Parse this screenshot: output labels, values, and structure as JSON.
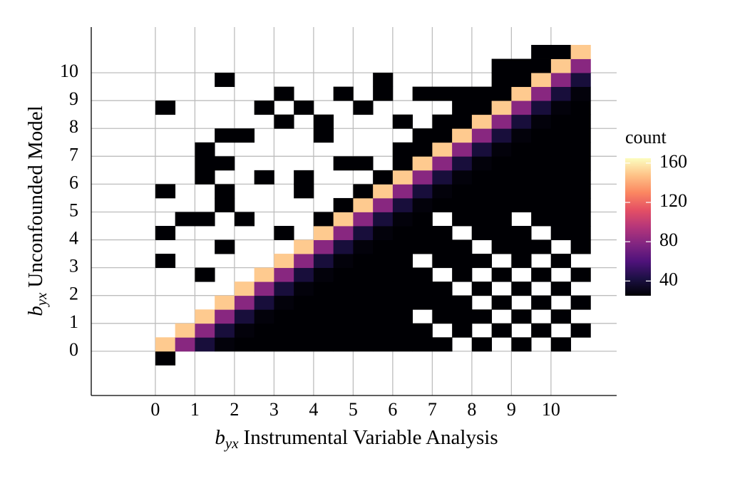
{
  "chart_data": {
    "type": "heatmap",
    "x_label": {
      "symbol": "b",
      "subscript": "yx",
      "text": "Instrumental Variable Analysis"
    },
    "y_label": {
      "symbol": "b",
      "subscript": "yx",
      "text": "Unconfounded Model"
    },
    "xlim": [
      -1.62,
      11.66
    ],
    "ylim": [
      -1.59,
      11.64
    ],
    "xticks": [
      0,
      1,
      2,
      3,
      4,
      5,
      6,
      7,
      8,
      9,
      10
    ],
    "yticks": [
      0,
      1,
      2,
      3,
      4,
      5,
      6,
      7,
      8,
      9,
      10
    ],
    "grid": true,
    "xbins": [
      0,
      0.5,
      1,
      1.5,
      2,
      2.5,
      3,
      3.5,
      4,
      4.5,
      5,
      5.5,
      6,
      6.5,
      7,
      7.5,
      8,
      8.5,
      9,
      9.5,
      10,
      10.5,
      11
    ],
    "ybins": [
      -0.5,
      0,
      0.5,
      1,
      1.5,
      2,
      2.5,
      3,
      3.5,
      4,
      4.5,
      5,
      5.5,
      6,
      6.5,
      7,
      7.5,
      8,
      8.5,
      9,
      9.5,
      10,
      10.5,
      11
    ],
    "z": [
      [
        1,
        null,
        null,
        null,
        null,
        null,
        null,
        null,
        null,
        null,
        null,
        null,
        null,
        null,
        null,
        null,
        null,
        null,
        null,
        null,
        null,
        null
      ],
      [
        150,
        80,
        40,
        27,
        20,
        16,
        13,
        11,
        10,
        9,
        8,
        7,
        7,
        6,
        6,
        null,
        5,
        null,
        4,
        null,
        4,
        null
      ],
      [
        null,
        150,
        80,
        40,
        27,
        20,
        16,
        13,
        11,
        10,
        9,
        8,
        7,
        7,
        null,
        6,
        null,
        5,
        null,
        4,
        null,
        4
      ],
      [
        null,
        null,
        150,
        80,
        40,
        27,
        20,
        16,
        13,
        11,
        10,
        9,
        8,
        null,
        7,
        6,
        6,
        null,
        5,
        null,
        4,
        null
      ],
      [
        null,
        null,
        null,
        150,
        80,
        40,
        27,
        20,
        16,
        13,
        11,
        10,
        9,
        8,
        7,
        7,
        null,
        6,
        null,
        5,
        null,
        4
      ],
      [
        null,
        null,
        null,
        null,
        150,
        80,
        40,
        27,
        20,
        16,
        13,
        11,
        10,
        9,
        8,
        null,
        7,
        null,
        6,
        null,
        5,
        null
      ],
      [
        null,
        null,
        1,
        null,
        null,
        150,
        80,
        40,
        27,
        20,
        16,
        13,
        11,
        10,
        null,
        8,
        null,
        7,
        null,
        6,
        null,
        5
      ],
      [
        1,
        null,
        null,
        null,
        null,
        null,
        150,
        80,
        40,
        27,
        20,
        16,
        13,
        null,
        10,
        9,
        8,
        null,
        7,
        null,
        6,
        null
      ],
      [
        null,
        null,
        null,
        1,
        null,
        null,
        null,
        150,
        80,
        40,
        27,
        20,
        16,
        13,
        11,
        10,
        null,
        8,
        7,
        7,
        null,
        6
      ],
      [
        1,
        null,
        null,
        null,
        null,
        null,
        1,
        null,
        150,
        80,
        40,
        27,
        20,
        16,
        13,
        null,
        10,
        9,
        8,
        null,
        7,
        6
      ],
      [
        null,
        1,
        1,
        null,
        1,
        null,
        null,
        null,
        4,
        150,
        80,
        40,
        27,
        20,
        null,
        13,
        11,
        10,
        null,
        8,
        7,
        7
      ],
      [
        null,
        null,
        null,
        1,
        null,
        null,
        null,
        null,
        null,
        4,
        150,
        80,
        40,
        27,
        20,
        16,
        13,
        11,
        10,
        9,
        8,
        7
      ],
      [
        1,
        null,
        null,
        1,
        null,
        null,
        null,
        1,
        null,
        null,
        4,
        150,
        80,
        40,
        27,
        20,
        16,
        13,
        11,
        10,
        9,
        8
      ],
      [
        null,
        null,
        1,
        null,
        null,
        1,
        null,
        1,
        null,
        null,
        null,
        4,
        150,
        80,
        40,
        27,
        20,
        16,
        13,
        11,
        10,
        9
      ],
      [
        null,
        null,
        1,
        1,
        null,
        null,
        null,
        null,
        null,
        1,
        1,
        null,
        4,
        150,
        80,
        40,
        27,
        20,
        16,
        13,
        11,
        10
      ],
      [
        null,
        null,
        1,
        null,
        null,
        null,
        null,
        null,
        null,
        null,
        null,
        null,
        1,
        4,
        150,
        80,
        40,
        27,
        20,
        16,
        13,
        11
      ],
      [
        null,
        null,
        null,
        1,
        1,
        null,
        null,
        null,
        1,
        null,
        null,
        null,
        null,
        1,
        4,
        150,
        80,
        40,
        27,
        20,
        16,
        13
      ],
      [
        null,
        null,
        null,
        null,
        null,
        null,
        1,
        null,
        1,
        null,
        null,
        null,
        1,
        null,
        1,
        4,
        150,
        80,
        40,
        27,
        20,
        16
      ],
      [
        1,
        null,
        null,
        null,
        null,
        1,
        null,
        1,
        null,
        null,
        1,
        null,
        null,
        null,
        null,
        1,
        4,
        150,
        80,
        40,
        27,
        20
      ],
      [
        null,
        null,
        null,
        null,
        null,
        null,
        1,
        null,
        null,
        1,
        null,
        1,
        null,
        1,
        1,
        1,
        1,
        4,
        150,
        80,
        40,
        27
      ],
      [
        null,
        null,
        null,
        1,
        null,
        null,
        null,
        null,
        null,
        null,
        null,
        1,
        null,
        null,
        null,
        null,
        null,
        1,
        4,
        150,
        80,
        40
      ],
      [
        null,
        null,
        null,
        null,
        null,
        null,
        null,
        null,
        null,
        null,
        null,
        null,
        null,
        null,
        null,
        null,
        null,
        1,
        1,
        4,
        150,
        80
      ],
      [
        null,
        null,
        null,
        null,
        null,
        null,
        null,
        null,
        null,
        null,
        null,
        null,
        null,
        null,
        null,
        null,
        null,
        null,
        null,
        1,
        4,
        150
      ]
    ],
    "colorbar": {
      "title": "count",
      "lim": [
        25,
        165
      ],
      "ticks": [
        40,
        80,
        120,
        160
      ]
    }
  }
}
